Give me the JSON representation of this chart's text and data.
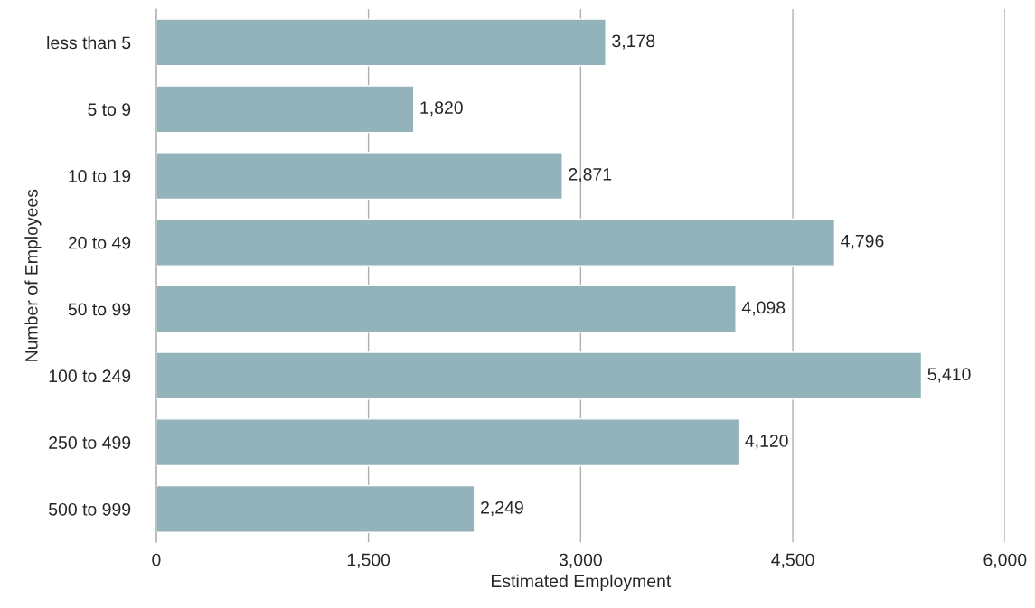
{
  "chart_data": {
    "type": "bar",
    "orientation": "horizontal",
    "xlabel": "Estimated Employment",
    "ylabel": "Number of Employees",
    "categories": [
      "less than 5",
      "5 to 9",
      "10 to 19",
      "20 to 49",
      "50 to 99",
      "100 to 249",
      "250 to 499",
      "500 to 999"
    ],
    "values": [
      3178,
      1820,
      2871,
      4796,
      4098,
      5410,
      4120,
      2249
    ],
    "value_labels": [
      "3,178",
      "1,820",
      "2,871",
      "4,796",
      "4,098",
      "5,410",
      "4,120",
      "2,249"
    ],
    "color": "#93b3bb",
    "xlim": [
      0,
      6000
    ],
    "xticks": [
      0,
      {
        "value": 1500,
        "label": "1,500"
      },
      {
        "value": 3000,
        "label": "3,000"
      },
      {
        "value": 4500,
        "label": "4,500"
      },
      {
        "value": 6000,
        "label": "6,000"
      }
    ],
    "grid": "x"
  }
}
